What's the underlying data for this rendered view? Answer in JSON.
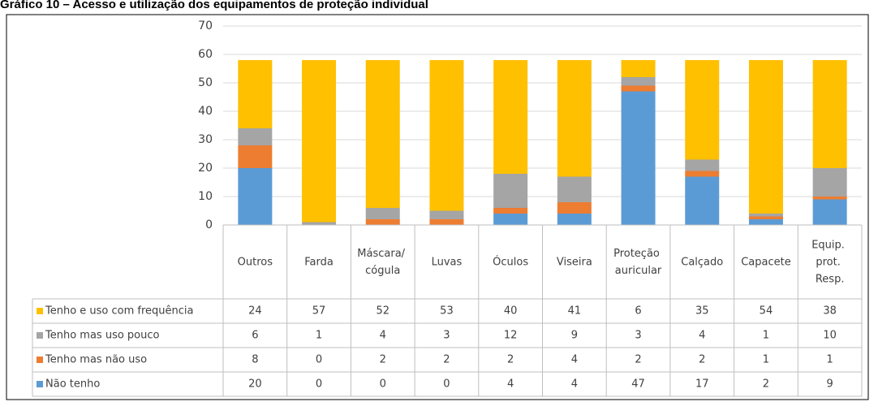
{
  "chart_data": {
    "type": "stacked_bar",
    "title": "Gráfico 10 – Acesso e utilização dos equipamentos de proteção individual",
    "categories": [
      "Outros",
      "Farda",
      "Máscara/ cógula",
      "Luvas",
      "Óculos",
      "Viseira",
      "Proteção auricular",
      "Calçado",
      "Capacete",
      "Equip. prot. Resp."
    ],
    "series": [
      {
        "name": "Não tenho",
        "color": "#5b9bd5",
        "values": [
          20,
          0,
          0,
          0,
          4,
          4,
          47,
          17,
          2,
          9
        ]
      },
      {
        "name": "Tenho mas não uso",
        "color": "#ed7d31",
        "values": [
          8,
          0,
          2,
          2,
          2,
          4,
          2,
          2,
          1,
          1
        ]
      },
      {
        "name": "Tenho mas uso pouco",
        "color": "#a5a5a5",
        "values": [
          6,
          1,
          4,
          3,
          12,
          9,
          3,
          4,
          1,
          10
        ]
      },
      {
        "name": "Tenho e uso com frequência",
        "color": "#ffc000",
        "values": [
          24,
          57,
          52,
          53,
          40,
          41,
          6,
          35,
          54,
          38
        ]
      }
    ],
    "ylim": [
      0,
      70
    ],
    "yticks": [
      0,
      10,
      20,
      30,
      40,
      50,
      60,
      70
    ],
    "grid": true,
    "data_table": true
  }
}
